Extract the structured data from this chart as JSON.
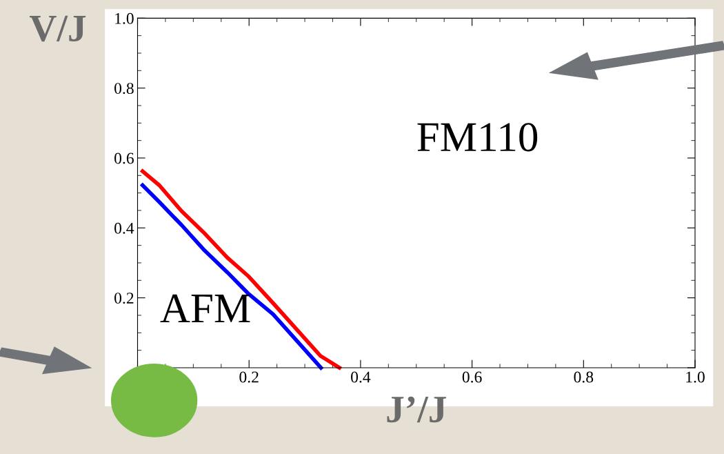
{
  "chart_data": {
    "type": "line",
    "xlabel": "J’/J",
    "ylabel": "V/J",
    "xlim": [
      0,
      1.0
    ],
    "ylim": [
      0,
      1.0
    ],
    "xticks": [
      {
        "value": 0,
        "label": null
      },
      0.2,
      0.4,
      0.6,
      0.8,
      {
        "value": 1,
        "label": "1.0"
      }
    ],
    "yticks": [
      {
        "value": 0,
        "label": null
      },
      0.2,
      0.4,
      0.6,
      0.8,
      {
        "value": 1,
        "label": "1.0"
      }
    ],
    "series": [
      {
        "color": "#ff0000",
        "x": [
          0.009,
          0.039,
          0.079,
          0.118,
          0.161,
          0.198,
          0.243,
          0.328,
          0.362
        ],
        "values": [
          0.562,
          0.522,
          0.448,
          0.388,
          0.315,
          0.263,
          0.185,
          0.034,
          0.0
        ]
      },
      {
        "color": "#0000ff",
        "x": [
          0.009,
          0.039,
          0.079,
          0.118,
          0.161,
          0.198,
          0.243,
          0.329
        ],
        "values": [
          0.522,
          0.474,
          0.408,
          0.339,
          0.273,
          0.213,
          0.153,
          0.0
        ]
      }
    ],
    "annotations": [
      "FM110",
      "AFM"
    ],
    "grid": false,
    "marker": "none",
    "line_style": "solid"
  }
}
